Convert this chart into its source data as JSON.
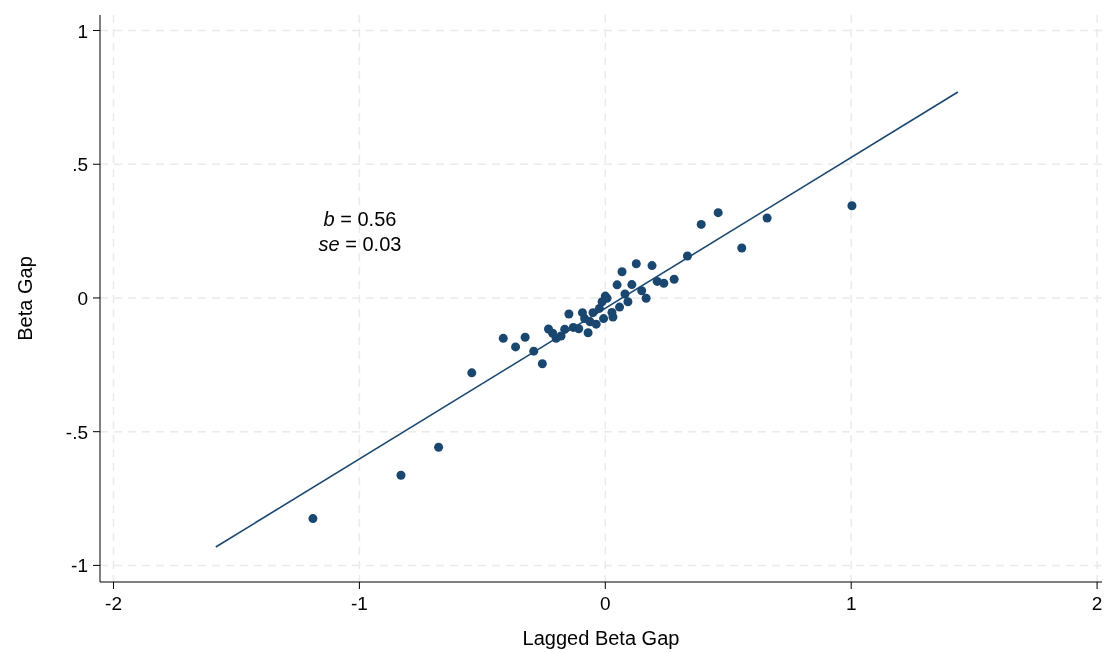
{
  "chart_data": {
    "type": "scatter",
    "xlabel": "Lagged Beta Gap",
    "ylabel": "Beta Gap",
    "xlim": [
      -2.055,
      2.02
    ],
    "ylim": [
      -1.062,
      1.058
    ],
    "xticks": [
      {
        "value": -2,
        "label": "-2"
      },
      {
        "value": -1,
        "label": "-1"
      },
      0,
      1,
      2
    ],
    "yticks": [
      {
        "value": -1,
        "label": "-1"
      },
      {
        "value": -0.5,
        "label": "-.5"
      },
      0,
      {
        "value": 0.5,
        "label": ".5"
      },
      1
    ],
    "grid": true,
    "marker": "circle",
    "annotations": [
      "b = 0.56",
      "se = 0.03"
    ],
    "series": [
      {
        "color": "#1a476f",
        "x": [
          -0.543,
          -0.415,
          -0.365,
          -0.326,
          -0.291,
          -0.256,
          -0.231,
          -0.214,
          -0.2,
          -0.18,
          -0.165,
          -0.148,
          -0.13,
          -0.108,
          -0.093,
          -0.084,
          -0.07,
          -0.062,
          -0.05,
          -0.037,
          -0.024,
          -0.013,
          -0.007,
          0.0,
          0.007,
          0.027,
          0.031,
          0.048,
          0.058,
          0.068,
          0.08,
          0.092,
          0.108,
          0.126,
          0.148,
          0.166,
          0.19,
          0.211,
          0.238,
          0.28,
          0.334,
          0.39,
          0.459,
          0.658,
          0.555,
          1.003,
          -1.189,
          -0.831,
          -0.678
        ],
        "values": [
          -0.28,
          -0.151,
          -0.183,
          -0.147,
          -0.199,
          -0.246,
          -0.116,
          -0.132,
          -0.151,
          -0.142,
          -0.117,
          -0.06,
          -0.11,
          -0.115,
          -0.055,
          -0.077,
          -0.13,
          -0.089,
          -0.055,
          -0.098,
          -0.039,
          -0.014,
          -0.077,
          0.007,
          -0.001,
          -0.054,
          -0.071,
          0.049,
          -0.034,
          0.098,
          0.015,
          -0.014,
          0.05,
          0.128,
          0.027,
          -0.001,
          0.121,
          0.062,
          0.055,
          0.07,
          0.157,
          0.275,
          0.319,
          0.299,
          0.187,
          0.345,
          -0.825,
          -0.663,
          -0.558
        ]
      },
      {
        "type": "line",
        "color": "#1a476f",
        "marker": "none",
        "x": [
          -1.584,
          1.434
        ],
        "values": [
          -0.931,
          0.77
        ]
      }
    ]
  }
}
